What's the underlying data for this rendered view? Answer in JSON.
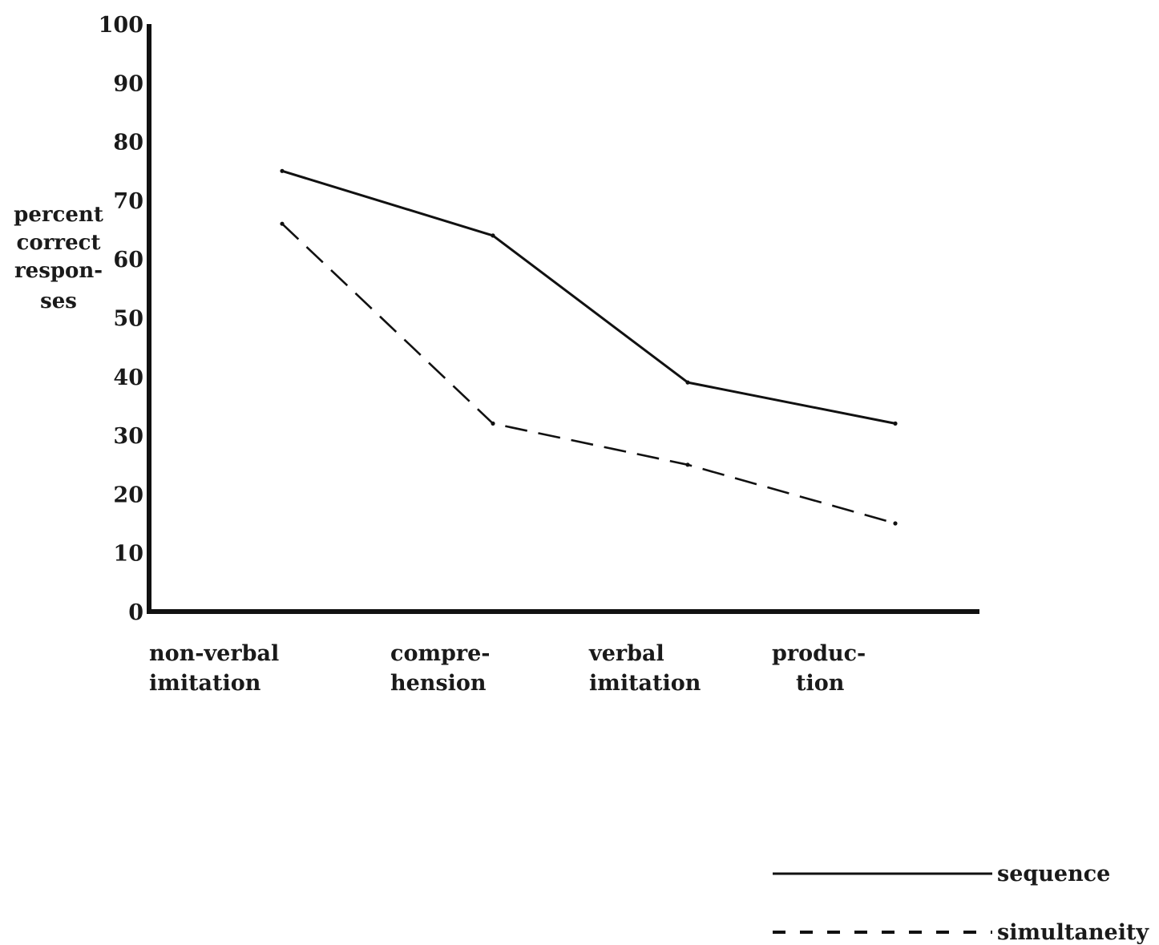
{
  "chart_data": {
    "type": "line",
    "categories": [
      [
        "non-verbal",
        "imitation"
      ],
      [
        "compre-",
        "hension"
      ],
      [
        "verbal",
        "imitation"
      ],
      [
        "produc-",
        "tion"
      ]
    ],
    "series": [
      {
        "name": "sequence",
        "values": [
          75,
          64,
          39,
          32
        ],
        "style": "solid"
      },
      {
        "name": "simultaneity",
        "values": [
          66,
          32,
          25,
          15
        ],
        "style": "dashed"
      }
    ],
    "ylabel": [
      "percent",
      "correct",
      "respon-",
      "ses"
    ],
    "yticks": [
      0,
      10,
      20,
      30,
      40,
      50,
      60,
      70,
      80,
      90,
      100
    ],
    "ylim": [
      0,
      100
    ],
    "grid": false,
    "legend_position": "bottom-right"
  }
}
